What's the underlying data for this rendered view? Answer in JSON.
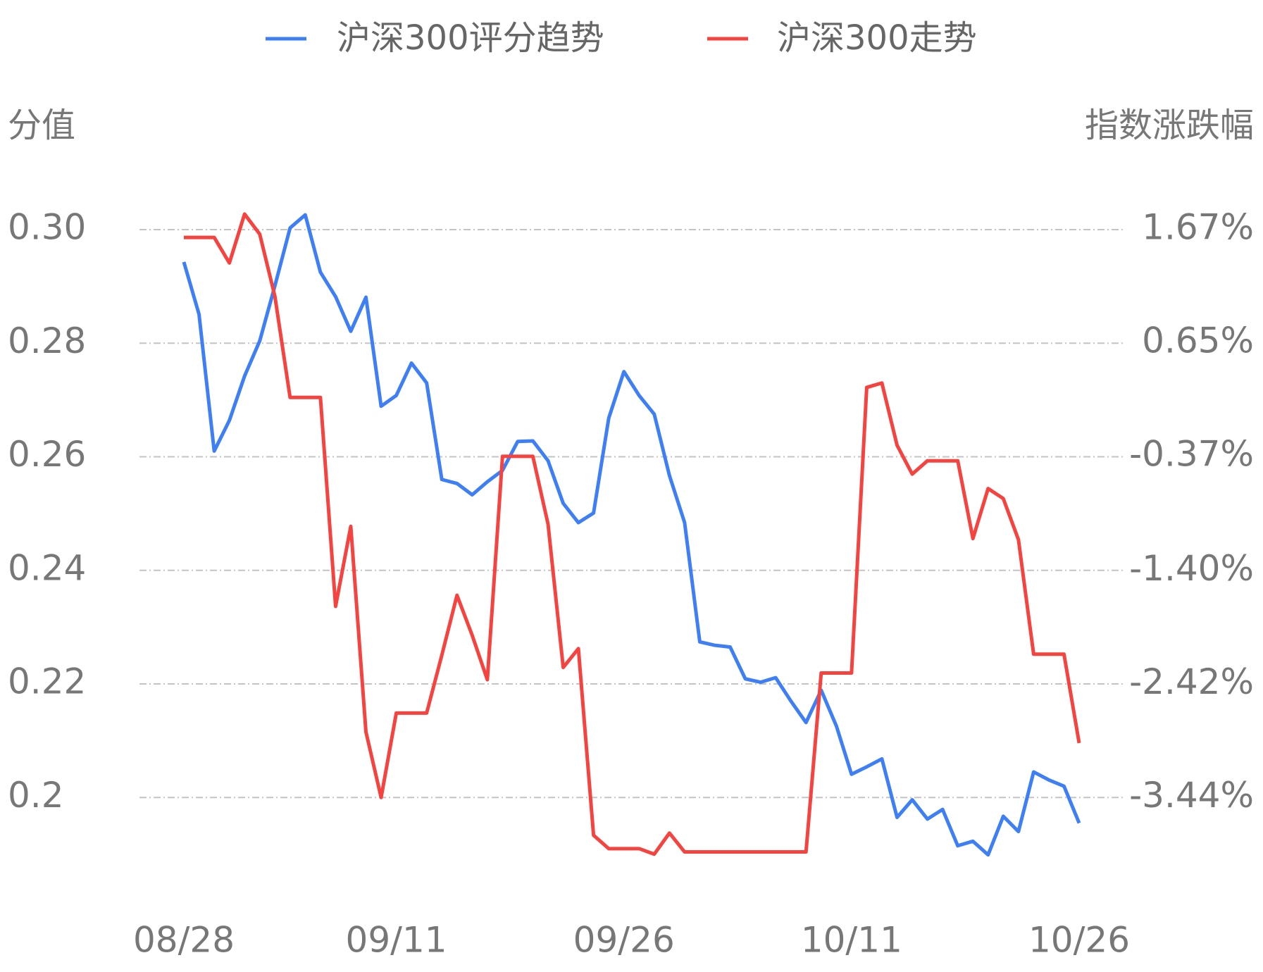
{
  "chart_data": {
    "type": "line",
    "legend": "top",
    "grid": true,
    "y_label": "分值",
    "y2_label": "指数涨跌幅",
    "categories": [
      "08/28",
      null,
      null,
      null,
      null,
      null,
      null,
      null,
      null,
      null,
      null,
      null,
      null,
      null,
      "09/11",
      null,
      null,
      null,
      null,
      null,
      null,
      null,
      null,
      null,
      null,
      null,
      null,
      null,
      null,
      "09/26",
      null,
      null,
      null,
      null,
      null,
      null,
      null,
      null,
      null,
      null,
      null,
      null,
      null,
      null,
      "10/11",
      null,
      null,
      null,
      null,
      null,
      null,
      null,
      null,
      null,
      null,
      null,
      null,
      null,
      null,
      "10/26"
    ],
    "ylim": [
      0.188,
      0.31
    ],
    "yticks": [
      0.2,
      {
        "value": 0.22,
        "label": "0.22"
      },
      {
        "value": 0.24,
        "label": "0.24"
      },
      {
        "value": 0.26,
        "label": "0.26"
      },
      {
        "value": 0.28,
        "label": "0.28"
      },
      {
        "value": 0.3,
        "label": "0.30"
      }
    ],
    "y2lim": [
      -4.0532,
      2.181
    ],
    "y2ticks": [
      {
        "value": -3.44,
        "label": "-3.44%"
      },
      {
        "value": -2.42,
        "label": "-2.42%"
      },
      {
        "value": -1.4,
        "label": "-1.40%"
      },
      {
        "value": -0.37,
        "label": "-0.37%"
      },
      {
        "value": 0.65,
        "label": "0.65%"
      },
      {
        "value": 1.67,
        "label": "1.67%"
      }
    ],
    "series": [
      {
        "name": "沪深300评分趋势",
        "color": "#3f7ff5",
        "axis": "y",
        "values": [
          0.2943,
          0.2851,
          0.261,
          0.2664,
          0.2742,
          0.2804,
          0.2901,
          0.3003,
          0.3026,
          0.2925,
          0.2882,
          0.2821,
          0.2881,
          0.2689,
          0.2708,
          0.2765,
          0.273,
          0.256,
          0.2553,
          0.2533,
          0.2556,
          0.2576,
          0.2627,
          0.2628,
          0.2593,
          0.2518,
          0.2484,
          0.2501,
          0.2668,
          0.275,
          0.2708,
          0.2675,
          0.2567,
          0.2484,
          0.2274,
          0.2268,
          0.2265,
          0.2209,
          0.2203,
          0.2211,
          0.217,
          0.2132,
          0.2189,
          0.2126,
          0.2041,
          0.2054,
          0.2068,
          0.1965,
          0.1996,
          0.1962,
          0.1979,
          0.1915,
          0.1923,
          0.1899,
          0.1967,
          0.194,
          0.2045,
          0.2031,
          0.202,
          0.1955
        ]
      },
      {
        "name": "沪深300走势",
        "color": "#f5443f",
        "axis": "y2",
        "values": [
          1.6,
          1.6,
          1.6,
          1.37,
          1.81,
          1.63,
          1.07,
          0.16,
          0.16,
          0.16,
          -1.72,
          -1.0,
          -2.85,
          -3.44,
          -2.68,
          -2.68,
          -2.68,
          -2.16,
          -1.62,
          -1.98,
          -2.38,
          -0.37,
          -0.37,
          -0.37,
          -0.98,
          -2.27,
          -2.1,
          -3.78,
          -3.9,
          -3.9,
          -3.9,
          -3.95,
          -3.76,
          -3.93,
          -3.93,
          -3.93,
          -3.93,
          -3.93,
          -3.93,
          -3.93,
          -3.93,
          -3.93,
          -2.32,
          -2.32,
          -2.32,
          0.25,
          0.29,
          -0.27,
          -0.53,
          -0.41,
          -0.41,
          -0.41,
          -1.11,
          -0.66,
          -0.75,
          -1.12,
          -2.15,
          -2.15,
          -2.15,
          -2.95
        ]
      }
    ]
  }
}
